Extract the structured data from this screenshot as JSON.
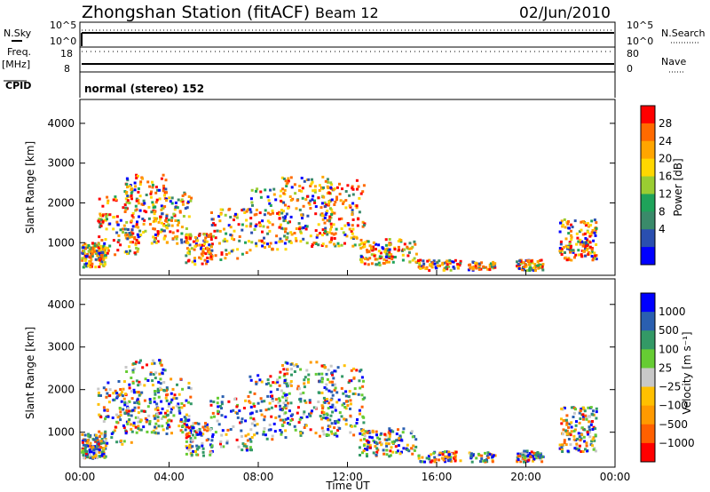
{
  "header": {
    "title": "Zhongshan Station (fitACF)",
    "beam": "Beam 12",
    "date": "02/Jun/2010"
  },
  "status_panels": {
    "nsky_label": "N.Sky",
    "nsky_ticks": [
      "10^5",
      "10^0"
    ],
    "nsearch_label": "N.Search",
    "nsearch_ticks": [
      "10^5",
      "10^0"
    ],
    "freq_label": "Freq.",
    "freq_unit": "[MHz]",
    "freq_ticks": [
      "18",
      "8"
    ],
    "nave_label": "Nave",
    "nave_ticks": [
      "80",
      "0"
    ],
    "cpid_label": "CPID",
    "cpid_text": "normal (stereo) 152"
  },
  "colors": {
    "power": [
      "#0000ff",
      "#2a4fb0",
      "#3a8a6a",
      "#1fa35a",
      "#9acd32",
      "#ffd700",
      "#ffa500",
      "#ff6a00",
      "#ff0000"
    ],
    "velocity": [
      "#ff0000",
      "#ff6000",
      "#ff9a00",
      "#ffc000",
      "#c8c8c8",
      "#66cc33",
      "#339966",
      "#2a5fb0",
      "#0000ff"
    ]
  },
  "chart_data": [
    {
      "type": "heatmap",
      "name": "power",
      "ylabel": "Slant Range [km]",
      "xlim": [
        "00:00",
        "00:00"
      ],
      "x_ticks": [
        "00:00",
        "04:00",
        "08:00",
        "12:00",
        "16:00",
        "20:00",
        "00:00"
      ],
      "y_ticks": [
        4000,
        3000,
        2000,
        1000
      ],
      "ylim": [
        180,
        4600
      ],
      "colorbar_label": "Power [dB]",
      "colorbar_ticks": [
        "28",
        "24",
        "20",
        "16",
        "12",
        "8",
        "4"
      ]
    },
    {
      "type": "heatmap",
      "name": "velocity",
      "ylabel": "Slant Range [km]",
      "xlabel": "Time UT",
      "xlim": [
        "00:00",
        "00:00"
      ],
      "x_ticks": [
        "00:00",
        "04:00",
        "08:00",
        "12:00",
        "16:00",
        "20:00",
        "00:00"
      ],
      "y_ticks": [
        4000,
        3000,
        2000,
        1000
      ],
      "ylim": [
        180,
        4600
      ],
      "colorbar_label": "Velocity [m s⁻¹]",
      "colorbar_ticks": [
        "1000",
        "500",
        "100",
        "25",
        "−25",
        "−100",
        "−500",
        "−1000"
      ]
    }
  ]
}
